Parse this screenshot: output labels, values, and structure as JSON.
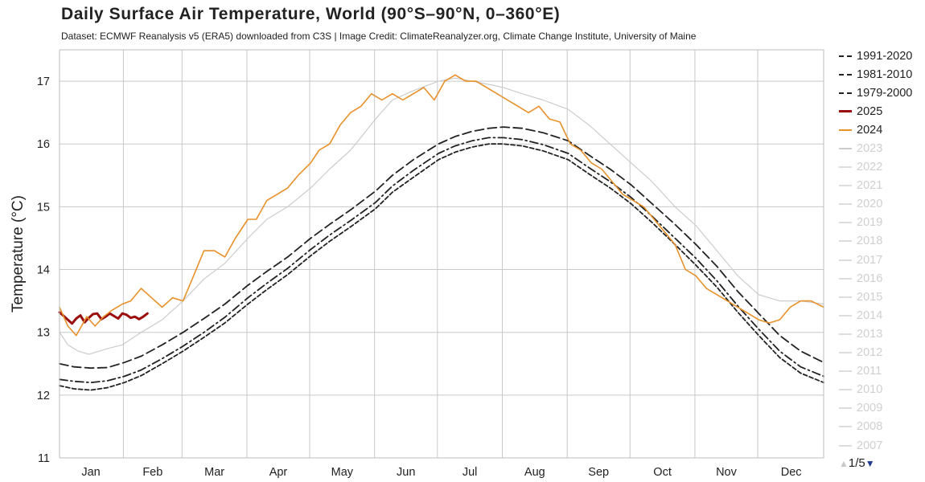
{
  "chart_data": {
    "type": "line",
    "title": "Daily Surface Air Temperature, World (90°S–90°N, 0–360°E)",
    "subtitle": "Dataset: ECMWF Reanalysis v5 (ERA5) downloaded from C3S | Image Credit: ClimateReanalyzer.org, Climate Change Institute, University of Maine",
    "xlabel": "",
    "ylabel": "Temperature (°C)",
    "ylim": [
      11,
      17.5
    ],
    "xlim": [
      1,
      366
    ],
    "yticks": [
      11,
      12,
      13,
      14,
      15,
      16,
      17
    ],
    "months": [
      {
        "label": "Jan",
        "start": 1,
        "end": 31
      },
      {
        "label": "Feb",
        "start": 32,
        "end": 59
      },
      {
        "label": "Mar",
        "start": 60,
        "end": 90
      },
      {
        "label": "Apr",
        "start": 91,
        "end": 120
      },
      {
        "label": "May",
        "start": 121,
        "end": 151
      },
      {
        "label": "Jun",
        "start": 152,
        "end": 181
      },
      {
        "label": "Jul",
        "start": 182,
        "end": 212
      },
      {
        "label": "Aug",
        "start": 213,
        "end": 243
      },
      {
        "label": "Sep",
        "start": 244,
        "end": 273
      },
      {
        "label": "Oct",
        "start": 274,
        "end": 304
      },
      {
        "label": "Nov",
        "start": 305,
        "end": 334
      },
      {
        "label": "Dec",
        "start": 335,
        "end": 366
      }
    ],
    "grid": true,
    "legend_position": "right",
    "series": [
      {
        "name": "1991-2020",
        "color": "#222222",
        "style": "longdash",
        "x": [
          1,
          8,
          16,
          24,
          32,
          40,
          50,
          60,
          70,
          80,
          91,
          100,
          110,
          121,
          130,
          140,
          152,
          160,
          170,
          182,
          190,
          198,
          206,
          213,
          222,
          232,
          244,
          254,
          264,
          274,
          284,
          295,
          305,
          315,
          325,
          335,
          345,
          355,
          366
        ],
        "values": [
          12.5,
          12.45,
          12.43,
          12.44,
          12.52,
          12.62,
          12.8,
          13.0,
          13.22,
          13.45,
          13.75,
          13.97,
          14.2,
          14.5,
          14.72,
          14.95,
          15.25,
          15.5,
          15.75,
          16.0,
          16.12,
          16.2,
          16.25,
          16.27,
          16.25,
          16.18,
          16.05,
          15.82,
          15.6,
          15.35,
          15.05,
          14.72,
          14.4,
          14.05,
          13.65,
          13.3,
          12.95,
          12.7,
          12.52
        ]
      },
      {
        "name": "1981-2010",
        "color": "#222222",
        "style": "dashdot",
        "x": [
          1,
          8,
          16,
          24,
          32,
          40,
          50,
          60,
          70,
          80,
          91,
          100,
          110,
          121,
          130,
          140,
          152,
          160,
          170,
          182,
          190,
          198,
          206,
          213,
          222,
          232,
          244,
          254,
          264,
          274,
          284,
          295,
          305,
          315,
          325,
          335,
          345,
          355,
          366
        ],
        "values": [
          12.25,
          12.22,
          12.2,
          12.23,
          12.3,
          12.4,
          12.58,
          12.78,
          13.0,
          13.24,
          13.55,
          13.78,
          14.02,
          14.32,
          14.55,
          14.78,
          15.07,
          15.33,
          15.58,
          15.85,
          15.97,
          16.05,
          16.1,
          16.1,
          16.07,
          15.99,
          15.85,
          15.62,
          15.4,
          15.15,
          14.85,
          14.5,
          14.18,
          13.82,
          13.42,
          13.05,
          12.7,
          12.45,
          12.3
        ]
      },
      {
        "name": "1979-2000",
        "color": "#222222",
        "style": "dash",
        "x": [
          1,
          8,
          16,
          24,
          32,
          40,
          50,
          60,
          70,
          80,
          91,
          100,
          110,
          121,
          130,
          140,
          152,
          160,
          170,
          182,
          190,
          198,
          206,
          213,
          222,
          232,
          244,
          254,
          264,
          274,
          284,
          295,
          305,
          315,
          325,
          335,
          345,
          355,
          366
        ],
        "values": [
          12.15,
          12.1,
          12.08,
          12.12,
          12.2,
          12.31,
          12.5,
          12.7,
          12.92,
          13.15,
          13.45,
          13.68,
          13.92,
          14.22,
          14.45,
          14.68,
          14.97,
          15.23,
          15.47,
          15.75,
          15.87,
          15.95,
          16.0,
          16.0,
          15.97,
          15.89,
          15.75,
          15.52,
          15.3,
          15.05,
          14.75,
          14.4,
          14.07,
          13.72,
          13.32,
          12.95,
          12.6,
          12.35,
          12.2
        ]
      },
      {
        "name": "2025",
        "color": "#9b0e0e",
        "style": "solid",
        "x": [
          1,
          3,
          5,
          7,
          9,
          11,
          13,
          15,
          17,
          19,
          21,
          23,
          25,
          27,
          29,
          31,
          33,
          35,
          37,
          39,
          41,
          43
        ],
        "values": [
          13.32,
          13.26,
          13.2,
          13.14,
          13.22,
          13.27,
          13.16,
          13.23,
          13.29,
          13.3,
          13.21,
          13.25,
          13.3,
          13.26,
          13.22,
          13.3,
          13.28,
          13.23,
          13.25,
          13.21,
          13.25,
          13.3
        ]
      },
      {
        "name": "2024",
        "color": "#e8912a",
        "style": "solid",
        "x": [
          1,
          5,
          9,
          14,
          18,
          22,
          26,
          31,
          35,
          40,
          45,
          50,
          55,
          60,
          65,
          70,
          75,
          80,
          85,
          91,
          95,
          100,
          105,
          110,
          115,
          121,
          125,
          130,
          135,
          140,
          145,
          150,
          155,
          160,
          165,
          170,
          175,
          180,
          185,
          190,
          195,
          200,
          205,
          210,
          215,
          220,
          225,
          230,
          235,
          240,
          245,
          250,
          255,
          260,
          265,
          270,
          275,
          280,
          285,
          290,
          295,
          300,
          305,
          310,
          315,
          320,
          325,
          330,
          335,
          340,
          345,
          350,
          355,
          360,
          366
        ],
        "values": [
          13.4,
          13.1,
          12.95,
          13.25,
          13.1,
          13.25,
          13.35,
          13.45,
          13.5,
          13.7,
          13.55,
          13.4,
          13.55,
          13.5,
          13.9,
          14.3,
          14.3,
          14.2,
          14.5,
          14.8,
          14.8,
          15.1,
          15.2,
          15.3,
          15.5,
          15.7,
          15.9,
          16.0,
          16.3,
          16.5,
          16.6,
          16.8,
          16.7,
          16.8,
          16.7,
          16.8,
          16.9,
          16.7,
          17.0,
          17.1,
          17.0,
          17.0,
          16.9,
          16.8,
          16.7,
          16.6,
          16.5,
          16.6,
          16.4,
          16.35,
          16.0,
          15.9,
          15.7,
          15.6,
          15.4,
          15.2,
          15.1,
          15.0,
          14.8,
          14.6,
          14.4,
          14.0,
          13.9,
          13.7,
          13.6,
          13.5,
          13.4,
          13.3,
          13.2,
          13.15,
          13.2,
          13.4,
          13.5,
          13.5,
          13.4
        ]
      },
      {
        "name": "2023",
        "color": "#cccccc",
        "style": "solid",
        "x": [
          1,
          5,
          10,
          15,
          20,
          25,
          31,
          40,
          50,
          60,
          70,
          80,
          91,
          100,
          110,
          121,
          130,
          140,
          152,
          160,
          170,
          182,
          190,
          198,
          206,
          213,
          222,
          232,
          244,
          254,
          264,
          274,
          284,
          295,
          305,
          315,
          325,
          335,
          345,
          355,
          366
        ],
        "values": [
          13.0,
          12.8,
          12.7,
          12.65,
          12.7,
          12.75,
          12.8,
          13.0,
          13.2,
          13.5,
          13.85,
          14.1,
          14.5,
          14.8,
          15.0,
          15.3,
          15.6,
          15.9,
          16.4,
          16.7,
          16.85,
          17.0,
          17.05,
          17.0,
          16.95,
          16.9,
          16.8,
          16.7,
          16.55,
          16.3,
          16.0,
          15.7,
          15.4,
          15.0,
          14.7,
          14.3,
          13.9,
          13.6,
          13.5,
          13.5,
          13.45
        ]
      }
    ]
  },
  "legend": [
    {
      "label": "1991-2020",
      "color": "#222222",
      "style": "longdash",
      "active": true
    },
    {
      "label": "1981-2010",
      "color": "#222222",
      "style": "dashdot",
      "active": true
    },
    {
      "label": "1979-2000",
      "color": "#222222",
      "style": "dash",
      "active": true
    },
    {
      "label": "2025",
      "color": "#9b0e0e",
      "style": "solid",
      "active": true
    },
    {
      "label": "2024",
      "color": "#e8912a",
      "style": "solid",
      "active": true
    },
    {
      "label": "2023",
      "color": "#cccccc",
      "style": "solid",
      "active": false
    },
    {
      "label": "2022",
      "color": "#dddddd",
      "style": "solid",
      "active": false
    },
    {
      "label": "2021",
      "color": "#dddddd",
      "style": "solid",
      "active": false
    },
    {
      "label": "2020",
      "color": "#dddddd",
      "style": "solid",
      "active": false
    },
    {
      "label": "2019",
      "color": "#dddddd",
      "style": "solid",
      "active": false
    },
    {
      "label": "2018",
      "color": "#dddddd",
      "style": "solid",
      "active": false
    },
    {
      "label": "2017",
      "color": "#dddddd",
      "style": "solid",
      "active": false
    },
    {
      "label": "2016",
      "color": "#dddddd",
      "style": "solid",
      "active": false
    },
    {
      "label": "2015",
      "color": "#dddddd",
      "style": "solid",
      "active": false
    },
    {
      "label": "2014",
      "color": "#dddddd",
      "style": "solid",
      "active": false
    },
    {
      "label": "2013",
      "color": "#dddddd",
      "style": "solid",
      "active": false
    },
    {
      "label": "2012",
      "color": "#dddddd",
      "style": "solid",
      "active": false
    },
    {
      "label": "2011",
      "color": "#dddddd",
      "style": "solid",
      "active": false
    },
    {
      "label": "2010",
      "color": "#dddddd",
      "style": "solid",
      "active": false
    },
    {
      "label": "2009",
      "color": "#dddddd",
      "style": "solid",
      "active": false
    },
    {
      "label": "2008",
      "color": "#dddddd",
      "style": "solid",
      "active": false
    },
    {
      "label": "2007",
      "color": "#dddddd",
      "style": "solid",
      "active": false
    }
  ],
  "pager": {
    "up_icon": "triangle-up-icon",
    "down_icon": "triangle-down-icon",
    "label": "1/5"
  }
}
